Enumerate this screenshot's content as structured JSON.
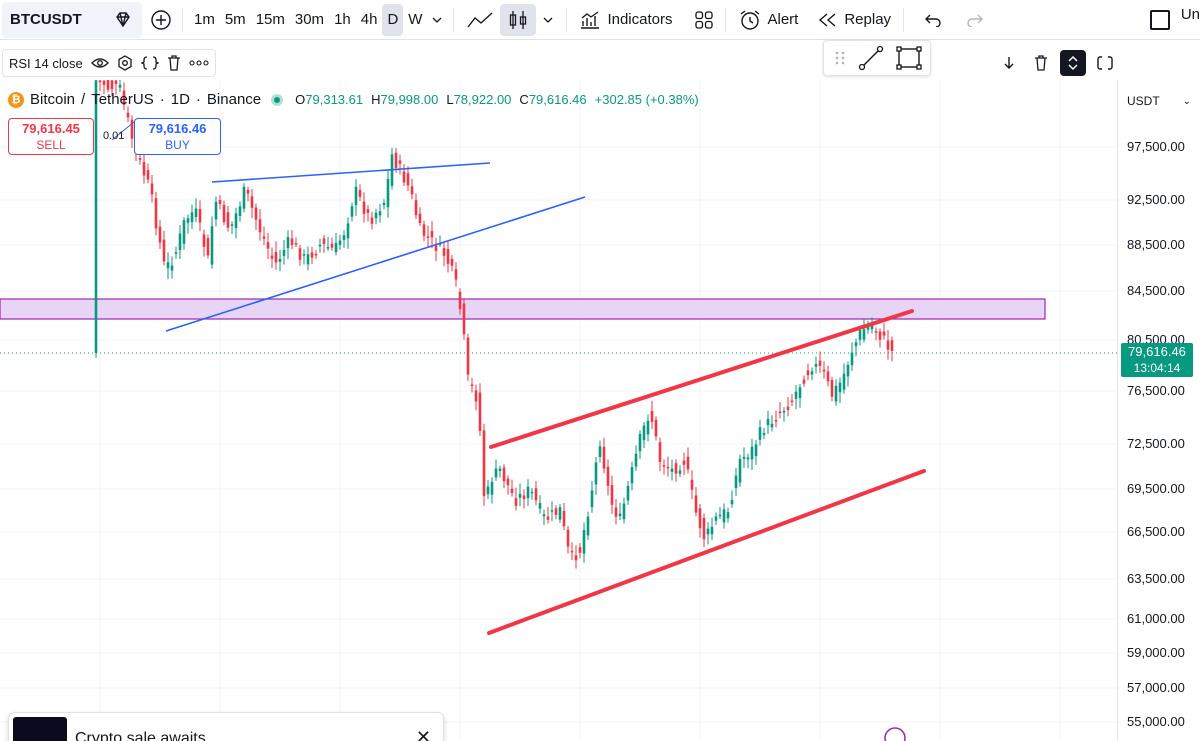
{
  "toolbar": {
    "symbol": "BTCUSDT",
    "timeframes": [
      "1m",
      "5m",
      "15m",
      "30m",
      "1h",
      "4h",
      "D",
      "W"
    ],
    "active_timeframe": "D",
    "indicators_label": "Indicators",
    "alert_label": "Alert",
    "replay_label": "Replay",
    "right_text": "Un"
  },
  "indicator_legend": {
    "rsi_label": "RSI 14 close"
  },
  "legend": {
    "base": "Bitcoin",
    "separator": "/",
    "quote": "TetherUS",
    "interval": "1D",
    "exchange": "Binance",
    "dot1": "·",
    "dot2": "·",
    "open_label": "O",
    "open": "79,313.61",
    "high_label": "H",
    "high": "79,998.00",
    "low_label": "L",
    "low": "78,922.00",
    "close_label": "C",
    "close": "79,616.46",
    "change": "+302.85 (+0.38%)"
  },
  "trade": {
    "sell_price": "79,616.45",
    "sell_label": "SELL",
    "spread": "0.01",
    "buy_price": "79,616.46",
    "buy_label": "BUY"
  },
  "price_axis": {
    "currency": "USDT",
    "ticks": [
      {
        "label": "97,500.00",
        "value": 97500
      },
      {
        "label": "92,500.00",
        "value": 92500
      },
      {
        "label": "88,500.00",
        "value": 88500
      },
      {
        "label": "84,500.00",
        "value": 84500
      },
      {
        "label": "80,500.00",
        "value": 80500
      },
      {
        "label": "76,500.00",
        "value": 76500
      },
      {
        "label": "72,500.00",
        "value": 72500
      },
      {
        "label": "69,500.00",
        "value": 69500
      },
      {
        "label": "66,500.00",
        "value": 66500
      },
      {
        "label": "63,500.00",
        "value": 63500
      },
      {
        "label": "61,000.00",
        "value": 61000
      },
      {
        "label": "59,000.00",
        "value": 59000
      },
      {
        "label": "57,000.00",
        "value": 57000
      },
      {
        "label": "55,000.00",
        "value": 55000
      }
    ],
    "last_price": "79,616.46",
    "countdown": "13:04:14"
  },
  "colors": {
    "up": "#089981",
    "down": "#f23645",
    "trendline_blue": "#2962ff",
    "channel_red": "#f23645",
    "zone_fill": "#e8d5f5",
    "zone_border": "#9c27b0"
  },
  "promo": {
    "text": "Crypto sale awaits"
  }
}
